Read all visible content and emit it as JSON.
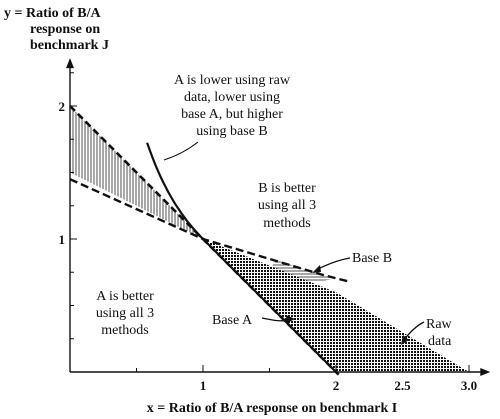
{
  "chart_data": {
    "type": "diagram",
    "title": "",
    "y_axis_title_lines": [
      "y = Ratio of B/A",
      "response on",
      "benchmark J"
    ],
    "x_axis_title": "x = Ratio of B/A response on benchmark I",
    "x_ticks": [
      {
        "value": 1,
        "label": "1"
      },
      {
        "value": 2,
        "label": "2"
      },
      {
        "value": 2.5,
        "label": "2.5"
      },
      {
        "value": 3,
        "label": "3.0"
      }
    ],
    "y_ticks": [
      {
        "value": 1,
        "label": "1"
      },
      {
        "value": 2,
        "label": "2"
      }
    ],
    "xlim": [
      0,
      3.1
    ],
    "ylim": [
      0,
      2.3
    ],
    "origin_point": {
      "x": 1,
      "y": 1
    },
    "lines": {
      "raw_data": {
        "name": "Raw data",
        "slope": -1,
        "note": "y = 2 - x (equal ratios)"
      },
      "base_a": {
        "name": "Base A",
        "note": "y = 1/x (hyperbola)"
      },
      "base_b": {
        "name": "Base B",
        "note": "dashed line y = 1.5 - x/2"
      }
    },
    "regions": [
      {
        "id": "a_better",
        "text": [
          "A is better",
          "using all 3",
          "methods"
        ]
      },
      {
        "id": "b_better",
        "text": [
          "B is better",
          "using all 3",
          "methods"
        ]
      },
      {
        "id": "mixed",
        "text": [
          "A is lower using raw",
          "data, lower using",
          "base A, but higher",
          "using base B"
        ]
      }
    ],
    "labels": {
      "base_a": "Base A",
      "base_b": "Base B",
      "raw_data": [
        "Raw",
        "data"
      ]
    }
  }
}
